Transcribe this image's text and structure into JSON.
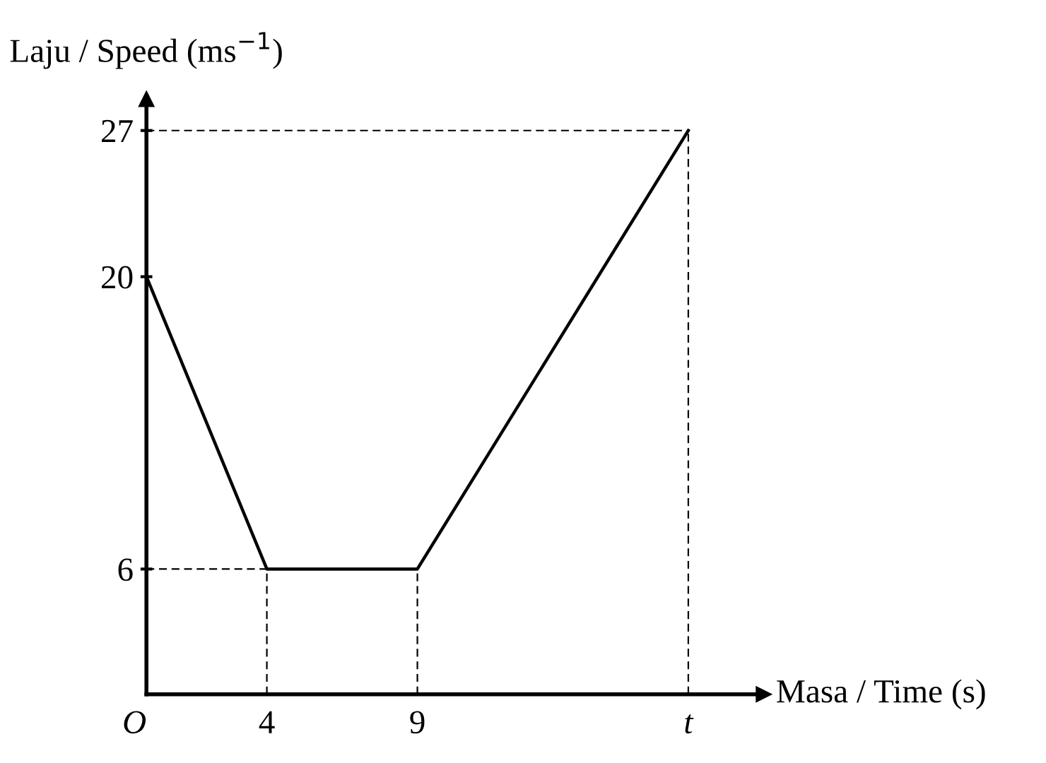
{
  "chart_data": {
    "type": "line",
    "xlabel": "Masa / Time (s)",
    "ylabel": "Laju / Speed (ms$^{−1}$)",
    "x": [
      0,
      4,
      9,
      18
    ],
    "series": [
      {
        "color": "#000000",
        "values": [
          20,
          6,
          6,
          27
        ]
      }
    ],
    "xlim": [
      0,
      20.5
    ],
    "ylim": [
      0,
      28.5
    ],
    "xticks": [
      {
        "value": 0,
        "label": "O"
      },
      4,
      9,
      {
        "value": 18,
        "label": "t"
      }
    ],
    "yticks": [
      6,
      20,
      27
    ],
    "grid": true,
    "legend": false,
    "marker": "none",
    "line_style": "solid"
  }
}
